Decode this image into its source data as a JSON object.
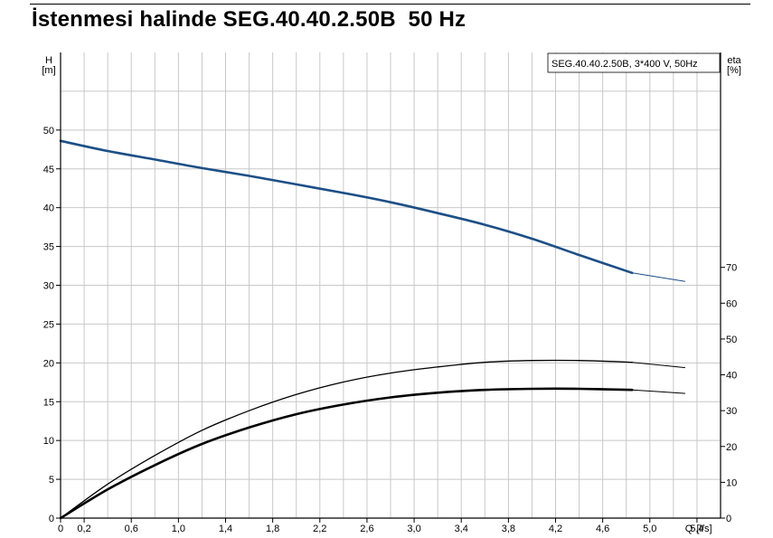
{
  "title": "İstenmesi halinde SEG.40.40.2.50B  50 Hz",
  "chart_data": {
    "type": "line",
    "legend_label": "SEG.40.40.2.50B, 3*400 V, 50Hz",
    "legend_position": "top-right",
    "grid": true,
    "x_axis": {
      "label": "Q",
      "unit": "[l/s]",
      "range": [
        0,
        5.6
      ],
      "ticks": [
        "0",
        "0,2",
        "0,6",
        "1,0",
        "1,4",
        "1,8",
        "2,2",
        "2,6",
        "3,0",
        "3,4",
        "3,8",
        "4,2",
        "4,6",
        "5,0",
        "5,4"
      ]
    },
    "y_axis_left": {
      "label": "H",
      "unit": "[m]",
      "range": [
        0,
        60
      ],
      "ticks": [
        "0",
        "5",
        "10",
        "15",
        "20",
        "25",
        "30",
        "35",
        "40",
        "45",
        "50"
      ]
    },
    "y_axis_right": {
      "label": "eta",
      "unit": "[%]",
      "range": [
        0,
        130
      ],
      "ticks": [
        "0",
        "10",
        "20",
        "30",
        "40",
        "50",
        "60",
        "70"
      ]
    },
    "series": [
      {
        "id": "head",
        "axis": "left",
        "color": "#1d4f86",
        "operating_limit": 4.85,
        "x": [
          0,
          0.4,
          0.8,
          1.2,
          1.6,
          2.0,
          2.4,
          2.8,
          3.2,
          3.6,
          4.0,
          4.4,
          4.85,
          5.3
        ],
        "y": [
          48.6,
          47.3,
          46.2,
          45.1,
          44.1,
          43.0,
          41.9,
          40.7,
          39.3,
          37.8,
          36.0,
          33.9,
          31.6,
          30.5
        ]
      },
      {
        "id": "efficiency-upper",
        "axis": "right",
        "color": "#000000",
        "operating_limit": 4.85,
        "x": [
          0,
          0.4,
          0.8,
          1.2,
          1.6,
          2.0,
          2.4,
          2.8,
          3.2,
          3.6,
          4.0,
          4.4,
          4.85,
          5.3
        ],
        "y": [
          0,
          9.5,
          17.5,
          24.5,
          30.0,
          34.5,
          38.0,
          40.5,
          42.2,
          43.5,
          44.0,
          44.0,
          43.5,
          42.0
        ]
      },
      {
        "id": "efficiency-lower",
        "axis": "right",
        "color": "#000000",
        "operating_limit": 4.85,
        "x": [
          0,
          0.4,
          0.8,
          1.2,
          1.6,
          2.0,
          2.4,
          2.8,
          3.2,
          3.6,
          4.0,
          4.4,
          4.85,
          5.3
        ],
        "y": [
          0,
          8.0,
          14.8,
          20.7,
          25.3,
          29.0,
          31.7,
          33.7,
          35.0,
          35.8,
          36.1,
          36.1,
          35.8,
          34.8
        ]
      }
    ]
  }
}
